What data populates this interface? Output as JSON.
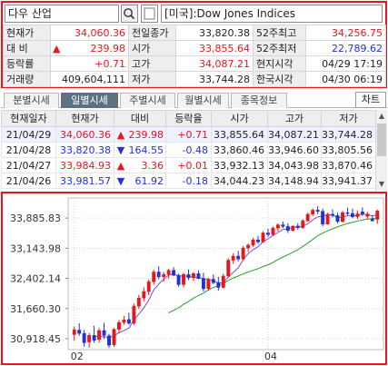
{
  "search": {
    "stock_name": "다우 산업",
    "search_icon": "magnifier-icon",
    "index_name": "[미국]:Dow Jones Indices"
  },
  "quote": {
    "rows": [
      [
        {
          "label": "현재가"
        },
        {
          "value": "34,060.36",
          "color": "red"
        },
        {
          "label": "전일종가"
        },
        {
          "value": "33,820.38",
          "color": "black"
        },
        {
          "label": "52주최고"
        },
        {
          "value": "34,256.75",
          "color": "red"
        }
      ],
      [
        {
          "label": "대    비"
        },
        {
          "value": "239.98",
          "color": "red",
          "arrow": "▲"
        },
        {
          "label": "시가"
        },
        {
          "value": "33,855.64",
          "color": "red"
        },
        {
          "label": "52주최저"
        },
        {
          "value": "22,789.62",
          "color": "blue"
        }
      ],
      [
        {
          "label": "등락률"
        },
        {
          "value": "+0.71",
          "color": "red"
        },
        {
          "label": "고가"
        },
        {
          "value": "34,087.21",
          "color": "red"
        },
        {
          "label": "현지시각"
        },
        {
          "value": "04/29 17:19",
          "color": "black"
        }
      ],
      [
        {
          "label": "거래량"
        },
        {
          "value": "409,604,111",
          "color": "black"
        },
        {
          "label": "저가"
        },
        {
          "value": "33,744.28",
          "color": "black"
        },
        {
          "label": "한국시각"
        },
        {
          "value": "04/30 06:19",
          "color": "black"
        }
      ]
    ]
  },
  "tabs": [
    "분별시세",
    "일별시세",
    "주별시세",
    "월별시세",
    "종목정보"
  ],
  "active_tab": 1,
  "chart_button": "차트",
  "daily": {
    "headers": [
      "현재일자",
      "현재가",
      "대비",
      "등락율",
      "시가",
      "고가",
      "저가"
    ],
    "rows": [
      {
        "date": "21/04/29",
        "price": "34,060.36",
        "arrow": "▲",
        "change": "239.98",
        "rate": "+0.71",
        "open": "33,855.64",
        "high": "34,087.21",
        "low": "33,744.28",
        "color": "red"
      },
      {
        "date": "21/04/28",
        "price": "33,820.38",
        "arrow": "▼",
        "change": "164.55",
        "rate": "-0.48",
        "open": "33,860.46",
        "high": "33,946.60",
        "low": "33,805.56",
        "color": "blue"
      },
      {
        "date": "21/04/27",
        "price": "33,984.93",
        "arrow": "▲",
        "change": "3.36",
        "rate": "+0.01",
        "open": "33,932.13",
        "high": "34,043.98",
        "low": "33,870.46",
        "color": "red"
      },
      {
        "date": "21/04/26",
        "price": "33,981.57",
        "arrow": "▼",
        "change": "61.92",
        "rate": "-0.18",
        "open": "34,044.23",
        "high": "34,148.94",
        "low": "33,941.37",
        "color": "blue"
      }
    ]
  },
  "colors": {
    "up": "#e8161b",
    "down": "#1e32d6",
    "ma_short": "#7b4ed8",
    "ma_long": "#2aa02a",
    "highlight": "#e8161b"
  },
  "chart_data": {
    "type": "candlestick",
    "y_ticks": [
      33885.83,
      33143.98,
      32402.14,
      31660.3,
      30918.45
    ],
    "y_tick_labels": [
      "33,885.83",
      "33,143.98",
      "32,402.14",
      "31,660.30",
      "30,918.45"
    ],
    "x_tick_labels": [
      {
        "label": "02",
        "index": 0
      },
      {
        "label": "04",
        "index": 39
      }
    ],
    "ylim": [
      30650,
      34380
    ],
    "grid": true,
    "legend": "none",
    "candles": [
      {
        "o": 31020,
        "h": 31220,
        "l": 30880,
        "c": 31140
      },
      {
        "o": 31130,
        "h": 31300,
        "l": 30990,
        "c": 31050
      },
      {
        "o": 31050,
        "h": 31140,
        "l": 30720,
        "c": 30820
      },
      {
        "o": 30840,
        "h": 31060,
        "l": 30700,
        "c": 31000
      },
      {
        "o": 31000,
        "h": 31240,
        "l": 30820,
        "c": 30880
      },
      {
        "o": 30900,
        "h": 31180,
        "l": 30820,
        "c": 31120
      },
      {
        "o": 31120,
        "h": 31310,
        "l": 30920,
        "c": 31000
      },
      {
        "o": 30990,
        "h": 31040,
        "l": 30690,
        "c": 30760
      },
      {
        "o": 30770,
        "h": 31180,
        "l": 30720,
        "c": 31150
      },
      {
        "o": 31150,
        "h": 31380,
        "l": 31050,
        "c": 31320
      },
      {
        "o": 31320,
        "h": 31480,
        "l": 31260,
        "c": 31380
      },
      {
        "o": 31390,
        "h": 31560,
        "l": 31260,
        "c": 31300
      },
      {
        "o": 31300,
        "h": 31780,
        "l": 31250,
        "c": 31720
      },
      {
        "o": 31720,
        "h": 32000,
        "l": 31650,
        "c": 31920
      },
      {
        "o": 31920,
        "h": 32180,
        "l": 31830,
        "c": 32080
      },
      {
        "o": 32080,
        "h": 32380,
        "l": 31990,
        "c": 32320
      },
      {
        "o": 32320,
        "h": 32620,
        "l": 32250,
        "c": 32560
      },
      {
        "o": 32560,
        "h": 32700,
        "l": 32380,
        "c": 32440
      },
      {
        "o": 32440,
        "h": 32560,
        "l": 32320,
        "c": 32500
      },
      {
        "o": 32500,
        "h": 32640,
        "l": 32400,
        "c": 32600
      },
      {
        "o": 32600,
        "h": 32680,
        "l": 32460,
        "c": 32480
      },
      {
        "o": 32480,
        "h": 32520,
        "l": 32200,
        "c": 32250
      },
      {
        "o": 32250,
        "h": 32540,
        "l": 32180,
        "c": 32500
      },
      {
        "o": 32500,
        "h": 32620,
        "l": 32360,
        "c": 32420
      },
      {
        "o": 32420,
        "h": 32560,
        "l": 32340,
        "c": 32520
      },
      {
        "o": 32520,
        "h": 32600,
        "l": 32380,
        "c": 32400
      },
      {
        "o": 32400,
        "h": 32540,
        "l": 32080,
        "c": 32150
      },
      {
        "o": 32150,
        "h": 32420,
        "l": 32100,
        "c": 32380
      },
      {
        "o": 32380,
        "h": 32500,
        "l": 32260,
        "c": 32300
      },
      {
        "o": 32300,
        "h": 32440,
        "l": 32100,
        "c": 32180
      },
      {
        "o": 32180,
        "h": 32520,
        "l": 32150,
        "c": 32460
      },
      {
        "o": 32460,
        "h": 32900,
        "l": 32420,
        "c": 32850
      },
      {
        "o": 32850,
        "h": 33020,
        "l": 32760,
        "c": 32950
      },
      {
        "o": 32950,
        "h": 33080,
        "l": 32820,
        "c": 32880
      },
      {
        "o": 32880,
        "h": 33200,
        "l": 32850,
        "c": 33150
      },
      {
        "o": 33150,
        "h": 33260,
        "l": 33050,
        "c": 33220
      },
      {
        "o": 33220,
        "h": 33400,
        "l": 33180,
        "c": 33350
      },
      {
        "o": 33350,
        "h": 33450,
        "l": 33250,
        "c": 33300
      },
      {
        "o": 33300,
        "h": 33560,
        "l": 33280,
        "c": 33520
      },
      {
        "o": 33520,
        "h": 33620,
        "l": 33420,
        "c": 33480
      },
      {
        "o": 33480,
        "h": 33680,
        "l": 33440,
        "c": 33640
      },
      {
        "o": 33640,
        "h": 33760,
        "l": 33560,
        "c": 33720
      },
      {
        "o": 33720,
        "h": 33800,
        "l": 33640,
        "c": 33680
      },
      {
        "o": 33680,
        "h": 33760,
        "l": 33520,
        "c": 33580
      },
      {
        "o": 33580,
        "h": 33700,
        "l": 33560,
        "c": 33690
      },
      {
        "o": 33690,
        "h": 33760,
        "l": 33600,
        "c": 33650
      },
      {
        "o": 33650,
        "h": 33860,
        "l": 33620,
        "c": 33820
      },
      {
        "o": 33820,
        "h": 34020,
        "l": 33790,
        "c": 33980
      },
      {
        "o": 33980,
        "h": 34120,
        "l": 33930,
        "c": 34080
      },
      {
        "o": 34080,
        "h": 34180,
        "l": 33980,
        "c": 34050
      },
      {
        "o": 34050,
        "h": 34120,
        "l": 33680,
        "c": 33740
      },
      {
        "o": 33740,
        "h": 34020,
        "l": 33720,
        "c": 33980
      },
      {
        "o": 33980,
        "h": 34100,
        "l": 33900,
        "c": 33950
      },
      {
        "o": 33950,
        "h": 34020,
        "l": 33760,
        "c": 33800
      },
      {
        "o": 33800,
        "h": 34060,
        "l": 33780,
        "c": 34020
      },
      {
        "o": 34020,
        "h": 34140,
        "l": 33960,
        "c": 34000
      },
      {
        "o": 34000,
        "h": 34120,
        "l": 33880,
        "c": 33920
      },
      {
        "o": 33920,
        "h": 34080,
        "l": 33860,
        "c": 33990
      },
      {
        "o": 34040,
        "h": 34150,
        "l": 33940,
        "c": 33980
      },
      {
        "o": 33930,
        "h": 34040,
        "l": 33870,
        "c": 33985
      },
      {
        "o": 33860,
        "h": 33950,
        "l": 33800,
        "c": 33820
      },
      {
        "o": 33855,
        "h": 34090,
        "l": 33744,
        "c": 34060
      }
    ]
  }
}
